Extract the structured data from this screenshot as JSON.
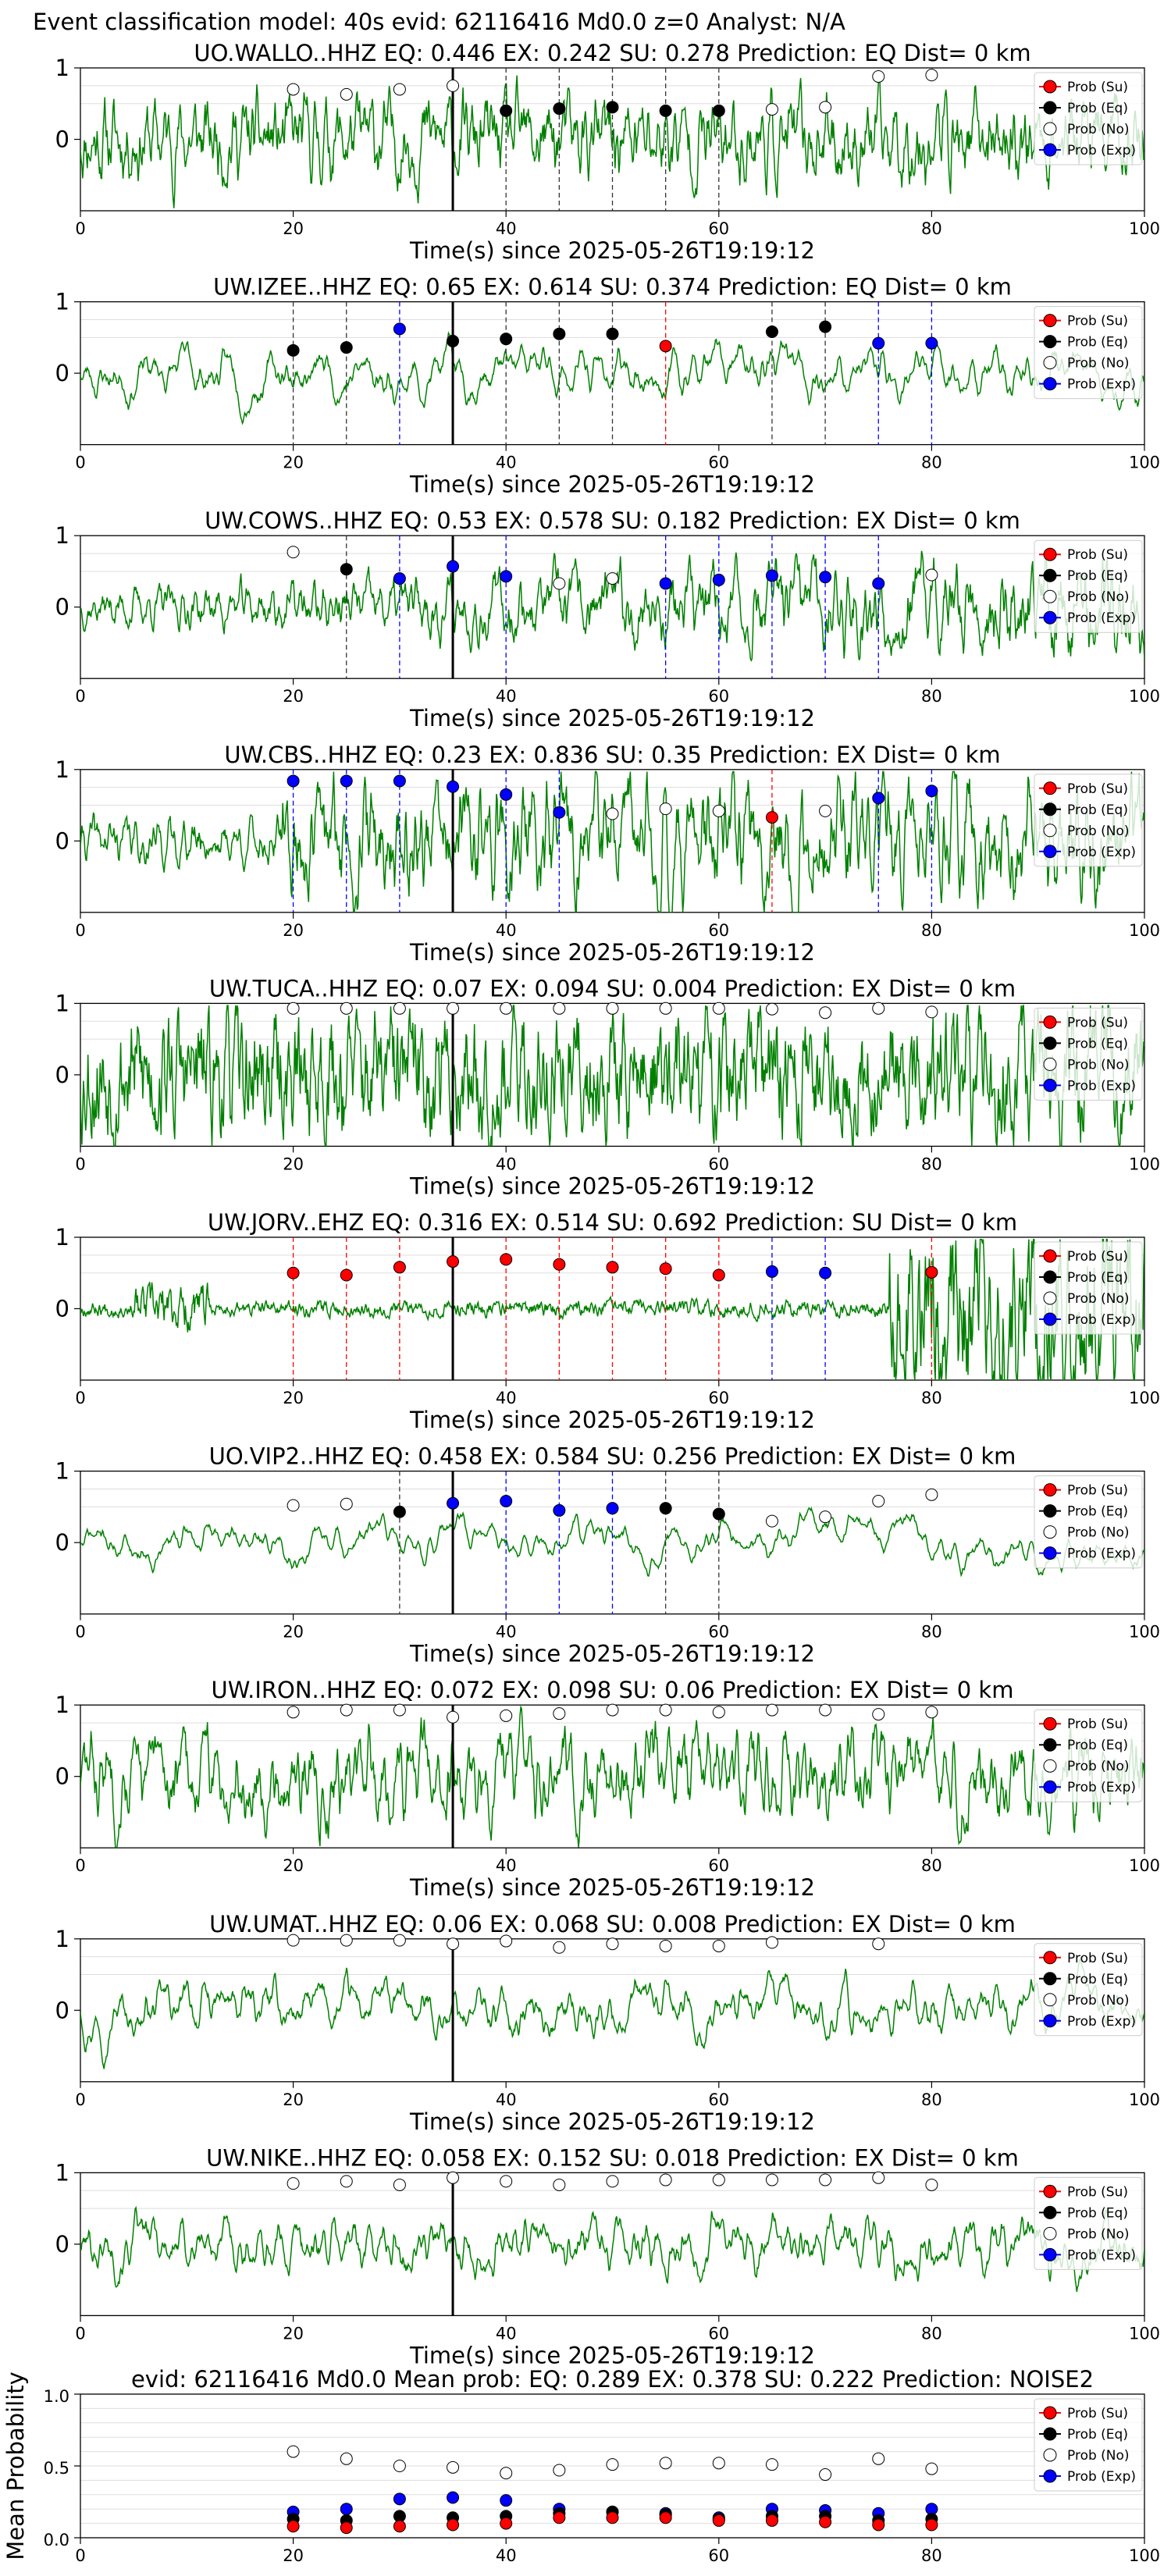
{
  "figure_title": "Event classification model: 40s evid: 62116416 Md0.0 z=0 Analyst: N/A",
  "legend_labels": [
    "Prob (Su)",
    "Prob (Eq)",
    "Prob (No)",
    "Prob (Exp)"
  ],
  "chart_data": [
    {
      "type": "line",
      "title": "UO.WALLO..HHZ   EQ: 0.446  EX: 0.242  SU: 0.278   Prediction: EQ    Dist= 0 km",
      "xlabel": "Time(s) since 2025-05-26T19:19:12",
      "xlim": [
        0,
        100
      ],
      "ylim": [
        -1,
        1
      ],
      "xticks": [
        0,
        20,
        40,
        60,
        80,
        100
      ],
      "yticks": [
        0,
        1
      ],
      "event_line_x": 35,
      "waveform": {
        "seed": 11,
        "smooth": 0.45,
        "amp": 0.45
      },
      "probabilities": [
        {
          "x": 20,
          "cls": "No",
          "p": 0.7
        },
        {
          "x": 25,
          "cls": "No",
          "p": 0.63
        },
        {
          "x": 30,
          "cls": "No",
          "p": 0.7
        },
        {
          "x": 35,
          "cls": "No",
          "p": 0.75
        },
        {
          "x": 40,
          "cls": "Eq",
          "p": 0.4
        },
        {
          "x": 45,
          "cls": "Eq",
          "p": 0.43
        },
        {
          "x": 50,
          "cls": "Eq",
          "p": 0.45
        },
        {
          "x": 55,
          "cls": "Eq",
          "p": 0.4
        },
        {
          "x": 60,
          "cls": "Eq",
          "p": 0.4
        },
        {
          "x": 65,
          "cls": "No",
          "p": 0.42
        },
        {
          "x": 70,
          "cls": "No",
          "p": 0.45
        },
        {
          "x": 75,
          "cls": "No",
          "p": 0.88
        },
        {
          "x": 80,
          "cls": "No",
          "p": 0.9
        }
      ]
    },
    {
      "type": "line",
      "title": "UW.IZEE..HHZ   EQ: 0.65  EX: 0.614  SU: 0.374   Prediction: EQ    Dist= 0 km",
      "xlabel": "Time(s) since 2025-05-26T19:19:12",
      "xlim": [
        0,
        100
      ],
      "ylim": [
        -1,
        1
      ],
      "xticks": [
        0,
        20,
        40,
        60,
        80,
        100
      ],
      "yticks": [
        0,
        1
      ],
      "event_line_x": 35,
      "waveform": {
        "seed": 23,
        "smooth": 0.88,
        "amp": 0.55
      },
      "probabilities": [
        {
          "x": 20,
          "cls": "Eq",
          "p": 0.32
        },
        {
          "x": 25,
          "cls": "Eq",
          "p": 0.36
        },
        {
          "x": 30,
          "cls": "Exp",
          "p": 0.62
        },
        {
          "x": 35,
          "cls": "Eq",
          "p": 0.45
        },
        {
          "x": 40,
          "cls": "Eq",
          "p": 0.48
        },
        {
          "x": 45,
          "cls": "Eq",
          "p": 0.55
        },
        {
          "x": 50,
          "cls": "Eq",
          "p": 0.55
        },
        {
          "x": 55,
          "cls": "Su",
          "p": 0.38
        },
        {
          "x": 65,
          "cls": "Eq",
          "p": 0.58
        },
        {
          "x": 70,
          "cls": "Eq",
          "p": 0.65
        },
        {
          "x": 75,
          "cls": "Exp",
          "p": 0.42
        },
        {
          "x": 80,
          "cls": "Exp",
          "p": 0.42
        }
      ]
    },
    {
      "type": "line",
      "title": "UW.COWS..HHZ   EQ: 0.53  EX: 0.578  SU: 0.182   Prediction: EX    Dist= 0 km",
      "xlabel": "Time(s) since 2025-05-26T19:19:12",
      "xlim": [
        0,
        100
      ],
      "ylim": [
        -1,
        1
      ],
      "xticks": [
        0,
        20,
        40,
        60,
        80,
        100
      ],
      "yticks": [
        0,
        1
      ],
      "event_line_x": 35,
      "waveform": {
        "seed": 37,
        "smooth": 0.55,
        "amp": 0.3,
        "ramp": true
      },
      "probabilities": [
        {
          "x": 20,
          "cls": "No",
          "p": 0.77
        },
        {
          "x": 25,
          "cls": "Eq",
          "p": 0.53
        },
        {
          "x": 30,
          "cls": "Exp",
          "p": 0.4
        },
        {
          "x": 35,
          "cls": "Exp",
          "p": 0.57
        },
        {
          "x": 40,
          "cls": "Exp",
          "p": 0.43
        },
        {
          "x": 45,
          "cls": "No",
          "p": 0.33
        },
        {
          "x": 50,
          "cls": "No",
          "p": 0.4
        },
        {
          "x": 55,
          "cls": "Exp",
          "p": 0.33
        },
        {
          "x": 60,
          "cls": "Exp",
          "p": 0.38
        },
        {
          "x": 65,
          "cls": "Exp",
          "p": 0.44
        },
        {
          "x": 70,
          "cls": "Exp",
          "p": 0.42
        },
        {
          "x": 75,
          "cls": "Exp",
          "p": 0.33
        },
        {
          "x": 80,
          "cls": "No",
          "p": 0.45
        }
      ]
    },
    {
      "type": "line",
      "title": "UW.CBS..HHZ   EQ: 0.23  EX: 0.836  SU: 0.35   Prediction: EX    Dist= 0 km",
      "xlabel": "Time(s) since 2025-05-26T19:19:12",
      "xlim": [
        0,
        100
      ],
      "ylim": [
        -1,
        1
      ],
      "xticks": [
        0,
        20,
        40,
        60,
        80,
        100
      ],
      "yticks": [
        0,
        1
      ],
      "event_line_x": 35,
      "waveform": {
        "seed": 41,
        "smooth": 0.5,
        "amp": 0.25,
        "burst": [
          19,
          100,
          2.6
        ]
      },
      "probabilities": [
        {
          "x": 20,
          "cls": "Exp",
          "p": 0.84
        },
        {
          "x": 25,
          "cls": "Exp",
          "p": 0.84
        },
        {
          "x": 30,
          "cls": "Exp",
          "p": 0.84
        },
        {
          "x": 35,
          "cls": "Exp",
          "p": 0.76
        },
        {
          "x": 40,
          "cls": "Exp",
          "p": 0.65
        },
        {
          "x": 45,
          "cls": "Exp",
          "p": 0.4
        },
        {
          "x": 50,
          "cls": "No",
          "p": 0.38
        },
        {
          "x": 55,
          "cls": "No",
          "p": 0.45
        },
        {
          "x": 60,
          "cls": "No",
          "p": 0.42
        },
        {
          "x": 65,
          "cls": "Su",
          "p": 0.33
        },
        {
          "x": 70,
          "cls": "No",
          "p": 0.42
        },
        {
          "x": 75,
          "cls": "Exp",
          "p": 0.6
        },
        {
          "x": 80,
          "cls": "Exp",
          "p": 0.7
        }
      ]
    },
    {
      "type": "line",
      "title": "UW.TUCA..HHZ   EQ: 0.07  EX: 0.094  SU: 0.004   Prediction: EX    Dist= 0 km",
      "xlabel": "Time(s) since 2025-05-26T19:19:12",
      "xlim": [
        0,
        100
      ],
      "ylim": [
        -1,
        1
      ],
      "xticks": [
        0,
        20,
        40,
        60,
        80,
        100
      ],
      "yticks": [
        0,
        1
      ],
      "event_line_x": 35,
      "waveform": {
        "seed": 53,
        "smooth": 0.2,
        "amp": 0.6
      },
      "probabilities": [
        {
          "x": 20,
          "cls": "No",
          "p": 0.93
        },
        {
          "x": 25,
          "cls": "No",
          "p": 0.93
        },
        {
          "x": 30,
          "cls": "No",
          "p": 0.93
        },
        {
          "x": 35,
          "cls": "No",
          "p": 0.93
        },
        {
          "x": 40,
          "cls": "No",
          "p": 0.93
        },
        {
          "x": 45,
          "cls": "No",
          "p": 0.93
        },
        {
          "x": 50,
          "cls": "No",
          "p": 0.93
        },
        {
          "x": 55,
          "cls": "No",
          "p": 0.93
        },
        {
          "x": 60,
          "cls": "No",
          "p": 0.93
        },
        {
          "x": 65,
          "cls": "No",
          "p": 0.92
        },
        {
          "x": 70,
          "cls": "No",
          "p": 0.87
        },
        {
          "x": 75,
          "cls": "No",
          "p": 0.93
        },
        {
          "x": 80,
          "cls": "No",
          "p": 0.88
        }
      ]
    },
    {
      "type": "line",
      "title": "UW.JORV..EHZ   EQ: 0.316  EX: 0.514  SU: 0.692   Prediction: SU    Dist= 0 km",
      "xlabel": "Time(s) since 2025-05-26T19:19:12",
      "xlim": [
        0,
        100
      ],
      "ylim": [
        -1,
        1
      ],
      "xticks": [
        0,
        20,
        40,
        60,
        80,
        100
      ],
      "yticks": [
        0,
        1
      ],
      "event_line_x": 35,
      "waveform": {
        "seed": 67,
        "smooth": 0.15,
        "amp": 0.07,
        "burst": [
          76,
          100,
          11
        ],
        "burst2": [
          5,
          12,
          3
        ]
      },
      "probabilities": [
        {
          "x": 20,
          "cls": "Su",
          "p": 0.5
        },
        {
          "x": 25,
          "cls": "Su",
          "p": 0.47
        },
        {
          "x": 30,
          "cls": "Su",
          "p": 0.58
        },
        {
          "x": 35,
          "cls": "Su",
          "p": 0.66
        },
        {
          "x": 40,
          "cls": "Su",
          "p": 0.69
        },
        {
          "x": 45,
          "cls": "Su",
          "p": 0.62
        },
        {
          "x": 50,
          "cls": "Su",
          "p": 0.58
        },
        {
          "x": 55,
          "cls": "Su",
          "p": 0.56
        },
        {
          "x": 60,
          "cls": "Su",
          "p": 0.47
        },
        {
          "x": 65,
          "cls": "Exp",
          "p": 0.52
        },
        {
          "x": 70,
          "cls": "Exp",
          "p": 0.5
        },
        {
          "x": 80,
          "cls": "Su",
          "p": 0.51
        }
      ]
    },
    {
      "type": "line",
      "title": "UO.VIP2..HHZ   EQ: 0.458  EX: 0.584  SU: 0.256   Prediction: EX    Dist= 0 km",
      "xlabel": "Time(s) since 2025-05-26T19:19:12",
      "xlim": [
        0,
        100
      ],
      "ylim": [
        -1,
        1
      ],
      "xticks": [
        0,
        20,
        40,
        60,
        80,
        100
      ],
      "yticks": [
        0,
        1
      ],
      "event_line_x": 35,
      "waveform": {
        "seed": 71,
        "smooth": 0.93,
        "amp": 0.6
      },
      "probabilities": [
        {
          "x": 20,
          "cls": "No",
          "p": 0.52
        },
        {
          "x": 25,
          "cls": "No",
          "p": 0.54
        },
        {
          "x": 30,
          "cls": "Eq",
          "p": 0.43
        },
        {
          "x": 35,
          "cls": "Exp",
          "p": 0.55
        },
        {
          "x": 40,
          "cls": "Exp",
          "p": 0.58
        },
        {
          "x": 45,
          "cls": "Exp",
          "p": 0.45
        },
        {
          "x": 50,
          "cls": "Exp",
          "p": 0.48
        },
        {
          "x": 55,
          "cls": "Eq",
          "p": 0.48
        },
        {
          "x": 60,
          "cls": "Eq",
          "p": 0.4
        },
        {
          "x": 65,
          "cls": "No",
          "p": 0.3
        },
        {
          "x": 70,
          "cls": "No",
          "p": 0.36
        },
        {
          "x": 75,
          "cls": "No",
          "p": 0.58
        },
        {
          "x": 80,
          "cls": "No",
          "p": 0.67
        }
      ]
    },
    {
      "type": "line",
      "title": "UW.IRON..HHZ   EQ: 0.072  EX: 0.098  SU: 0.06   Prediction: EX    Dist= 0 km",
      "xlabel": "Time(s) since 2025-05-26T19:19:12",
      "xlim": [
        0,
        100
      ],
      "ylim": [
        -1,
        1
      ],
      "xticks": [
        0,
        20,
        40,
        60,
        80,
        100
      ],
      "yticks": [
        0,
        1
      ],
      "event_line_x": 35,
      "waveform": {
        "seed": 83,
        "smooth": 0.6,
        "amp": 0.55
      },
      "probabilities": [
        {
          "x": 20,
          "cls": "No",
          "p": 0.9
        },
        {
          "x": 25,
          "cls": "No",
          "p": 0.93
        },
        {
          "x": 30,
          "cls": "No",
          "p": 0.93
        },
        {
          "x": 35,
          "cls": "No",
          "p": 0.83
        },
        {
          "x": 40,
          "cls": "No",
          "p": 0.85
        },
        {
          "x": 45,
          "cls": "No",
          "p": 0.88
        },
        {
          "x": 50,
          "cls": "No",
          "p": 0.93
        },
        {
          "x": 55,
          "cls": "No",
          "p": 0.93
        },
        {
          "x": 60,
          "cls": "No",
          "p": 0.9
        },
        {
          "x": 65,
          "cls": "No",
          "p": 0.93
        },
        {
          "x": 70,
          "cls": "No",
          "p": 0.93
        },
        {
          "x": 75,
          "cls": "No",
          "p": 0.87
        },
        {
          "x": 80,
          "cls": "No",
          "p": 0.9
        }
      ]
    },
    {
      "type": "line",
      "title": "UW.UMAT..HHZ   EQ: 0.06  EX: 0.068  SU: 0.008   Prediction: EX    Dist= 0 km",
      "xlabel": "Time(s) since 2025-05-26T19:19:12",
      "xlim": [
        0,
        100
      ],
      "ylim": [
        -1,
        1
      ],
      "xticks": [
        0,
        20,
        40,
        60,
        80,
        100
      ],
      "yticks": [
        0,
        1
      ],
      "event_line_x": 35,
      "waveform": {
        "seed": 97,
        "smooth": 0.85,
        "amp": 0.5
      },
      "probabilities": [
        {
          "x": 20,
          "cls": "No",
          "p": 0.98
        },
        {
          "x": 25,
          "cls": "No",
          "p": 0.98
        },
        {
          "x": 30,
          "cls": "No",
          "p": 0.98
        },
        {
          "x": 35,
          "cls": "No",
          "p": 0.93
        },
        {
          "x": 40,
          "cls": "No",
          "p": 0.97
        },
        {
          "x": 45,
          "cls": "No",
          "p": 0.88
        },
        {
          "x": 50,
          "cls": "No",
          "p": 0.93
        },
        {
          "x": 55,
          "cls": "No",
          "p": 0.9
        },
        {
          "x": 60,
          "cls": "No",
          "p": 0.9
        },
        {
          "x": 65,
          "cls": "No",
          "p": 0.95
        },
        {
          "x": 75,
          "cls": "No",
          "p": 0.93
        }
      ]
    },
    {
      "type": "line",
      "title": "UW.NIKE..HHZ   EQ: 0.058  EX: 0.152  SU: 0.018   Prediction: EX    Dist= 0 km",
      "xlabel": "Time(s) since 2025-05-26T19:19:12",
      "xlim": [
        0,
        100
      ],
      "ylim": [
        -1,
        1
      ],
      "xticks": [
        0,
        20,
        40,
        60,
        80,
        100
      ],
      "yticks": [
        0,
        1
      ],
      "event_line_x": 35,
      "waveform": {
        "seed": 101,
        "smooth": 0.8,
        "amp": 0.45
      },
      "probabilities": [
        {
          "x": 20,
          "cls": "No",
          "p": 0.85
        },
        {
          "x": 25,
          "cls": "No",
          "p": 0.88
        },
        {
          "x": 30,
          "cls": "No",
          "p": 0.83
        },
        {
          "x": 35,
          "cls": "No",
          "p": 0.93
        },
        {
          "x": 40,
          "cls": "No",
          "p": 0.88
        },
        {
          "x": 45,
          "cls": "No",
          "p": 0.83
        },
        {
          "x": 50,
          "cls": "No",
          "p": 0.88
        },
        {
          "x": 55,
          "cls": "No",
          "p": 0.9
        },
        {
          "x": 60,
          "cls": "No",
          "p": 0.9
        },
        {
          "x": 65,
          "cls": "No",
          "p": 0.9
        },
        {
          "x": 70,
          "cls": "No",
          "p": 0.9
        },
        {
          "x": 75,
          "cls": "No",
          "p": 0.93
        },
        {
          "x": 80,
          "cls": "No",
          "p": 0.83
        }
      ]
    },
    {
      "type": "scatter",
      "title": "evid: 62116416  Md0.0   Mean prob:   EQ: 0.289  EX: 0.378  SU: 0.222   Prediction: NOISE2",
      "xlabel": "",
      "ylabel": "Mean Probability",
      "xlim": [
        0,
        100
      ],
      "ylim": [
        0,
        1
      ],
      "xticks": [
        0,
        20,
        40,
        60,
        80,
        100
      ],
      "yticks": [
        0.0,
        0.5,
        1.0
      ],
      "ytick_labels": [
        "0.0",
        "0.5",
        "1.0"
      ],
      "x": [
        20,
        25,
        30,
        35,
        40,
        45,
        50,
        55,
        60,
        65,
        70,
        75,
        80
      ],
      "series": [
        {
          "name": "Prob (No)",
          "values": [
            0.6,
            0.55,
            0.5,
            0.49,
            0.45,
            0.47,
            0.51,
            0.52,
            0.52,
            0.51,
            0.44,
            0.55,
            0.48
          ]
        },
        {
          "name": "Prob (Exp)",
          "values": [
            0.18,
            0.2,
            0.27,
            0.28,
            0.26,
            0.2,
            0.18,
            0.17,
            0.14,
            0.2,
            0.19,
            0.17,
            0.2
          ]
        },
        {
          "name": "Prob (Eq)",
          "values": [
            0.13,
            0.12,
            0.15,
            0.14,
            0.15,
            0.17,
            0.18,
            0.16,
            0.13,
            0.15,
            0.15,
            0.12,
            0.13
          ]
        },
        {
          "name": "Prob (Su)",
          "values": [
            0.08,
            0.07,
            0.08,
            0.09,
            0.1,
            0.14,
            0.14,
            0.14,
            0.12,
            0.12,
            0.11,
            0.09,
            0.09
          ]
        }
      ]
    }
  ],
  "colors": {
    "waveform": "#008000",
    "Su": "#ff0000",
    "Eq": "#000000",
    "No": "#ffffff",
    "Exp": "#0000ff",
    "grid": "#dddddd"
  }
}
